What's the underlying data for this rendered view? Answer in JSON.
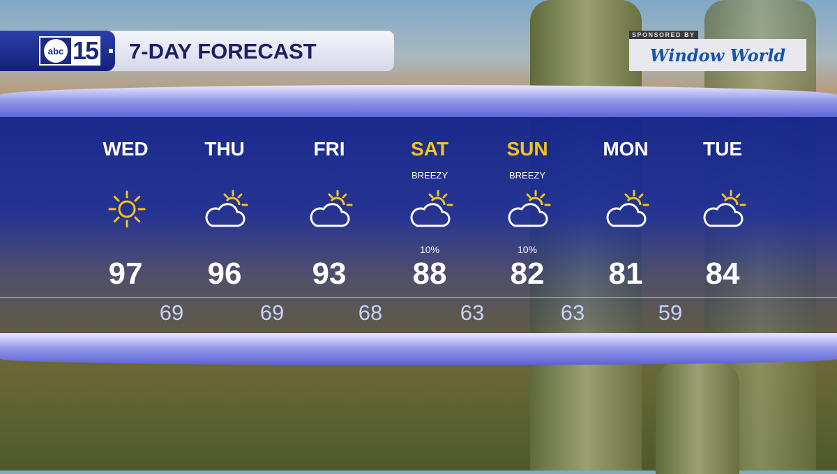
{
  "header": {
    "logo_text": "abc",
    "logo_number": "15",
    "title": "7-DAY FORECAST"
  },
  "sponsor": {
    "label": "SPONSORED BY",
    "brand": "Window World"
  },
  "colors": {
    "panel": "#1a2a90",
    "weekend_day": "#f5c518",
    "low_temp": "#c8d0ff",
    "sun": "#f5c518"
  },
  "days": [
    {
      "day": "WED",
      "icon": "sunny-icon",
      "note": "",
      "pop": "",
      "high": "97",
      "weekend": false
    },
    {
      "day": "THU",
      "icon": "partly-cloudy-icon",
      "note": "",
      "pop": "",
      "high": "96",
      "weekend": false
    },
    {
      "day": "FRI",
      "icon": "partly-cloudy-icon",
      "note": "",
      "pop": "",
      "high": "93",
      "weekend": false
    },
    {
      "day": "SAT",
      "icon": "partly-cloudy-icon",
      "note": "BREEZY",
      "pop": "10%",
      "high": "88",
      "weekend": true
    },
    {
      "day": "SUN",
      "icon": "partly-cloudy-icon",
      "note": "BREEZY",
      "pop": "10%",
      "high": "82",
      "weekend": true
    },
    {
      "day": "MON",
      "icon": "partly-cloudy-icon",
      "note": "",
      "pop": "",
      "high": "81",
      "weekend": false
    },
    {
      "day": "TUE",
      "icon": "partly-cloudy-icon",
      "note": "",
      "pop": "",
      "high": "84",
      "weekend": false
    }
  ],
  "lows": [
    "69",
    "69",
    "68",
    "63",
    "63",
    "59"
  ]
}
